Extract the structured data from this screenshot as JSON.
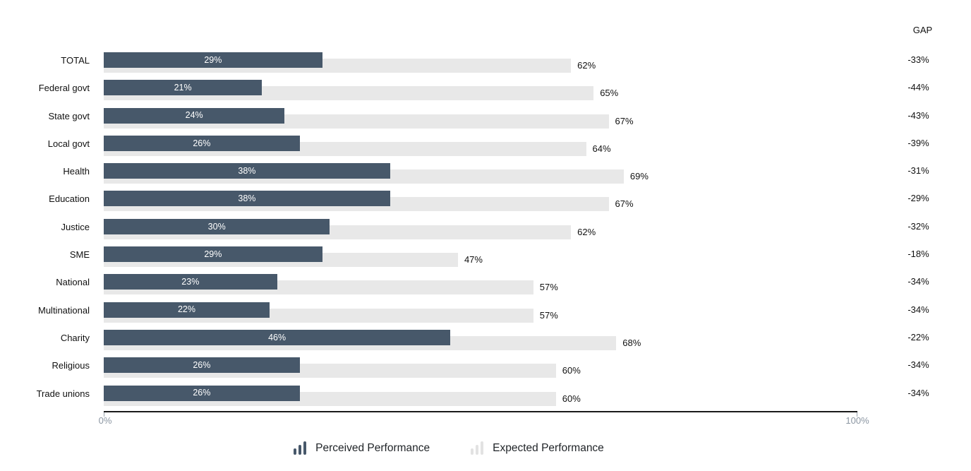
{
  "chart_data": {
    "type": "bar",
    "orientation": "horizontal",
    "gap_column_label": "GAP",
    "categories": [
      "TOTAL",
      "Federal govt",
      "State govt",
      "Local govt",
      "Health",
      "Education",
      "Justice",
      "SME",
      "National",
      "Multinational",
      "Charity",
      "Religious",
      "Trade unions"
    ],
    "series": [
      {
        "name": "Perceived Performance",
        "values": [
          29,
          21,
          24,
          26,
          38,
          38,
          30,
          29,
          23,
          22,
          46,
          26,
          26
        ]
      },
      {
        "name": "Expected Performance",
        "values": [
          62,
          65,
          67,
          64,
          69,
          67,
          62,
          47,
          57,
          57,
          68,
          60,
          60
        ]
      }
    ],
    "gap_values": [
      -33,
      -44,
      -43,
      -39,
      -31,
      -29,
      -32,
      -18,
      -34,
      -34,
      -22,
      -34,
      -34
    ],
    "value_suffix": "%",
    "xlim": [
      0,
      100
    ],
    "x_tick_labels": [
      "0%",
      "100%"
    ],
    "grid": false,
    "legend_position": "bottom",
    "legend": [
      "Perceived Performance",
      "Expected Performance"
    ],
    "colors": {
      "perceived": "#47586a",
      "expected": "#e8e8e8",
      "legend_expected_icon": "#e2e2e2",
      "bar_value_text": "#ffffff",
      "value_text": "#111111",
      "axis_tick_text": "#8b96a2",
      "axis_line": "#1a1a1a"
    }
  }
}
